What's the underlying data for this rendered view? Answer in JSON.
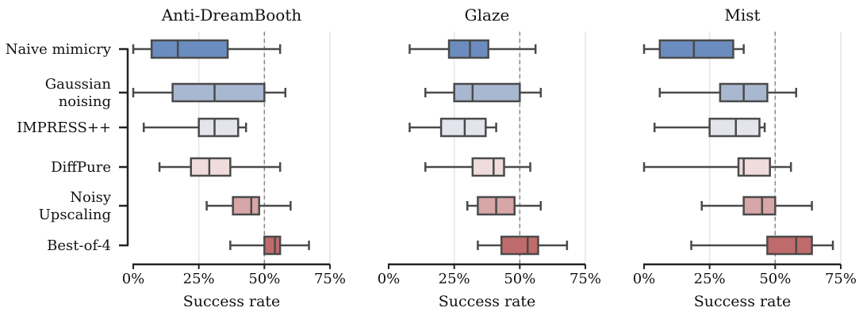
{
  "chart_data": {
    "type": "box",
    "xlabel": "Success rate",
    "xlim": [
      0,
      75
    ],
    "xticks": [
      0,
      25,
      50,
      75
    ],
    "tick_suffix": "%",
    "reference_line": 50,
    "grid": "vertical",
    "categories": [
      {
        "label": [
          "Naive mimicry"
        ],
        "color": "#6b8cbe"
      },
      {
        "label": [
          "Gaussian",
          "noising"
        ],
        "color": "#a8b8d0"
      },
      {
        "label": [
          "IMPRESS++"
        ],
        "color": "#e3e4ec"
      },
      {
        "label": [
          "DiffPure"
        ],
        "color": "#f0dcdc"
      },
      {
        "label": [
          "Noisy",
          "Upscaling"
        ],
        "color": "#d7a6a6"
      },
      {
        "label": [
          "Best-of-4"
        ],
        "color": "#c06b6b"
      }
    ],
    "panels": [
      {
        "title": "Anti-DreamBooth",
        "boxes": [
          {
            "min": 0,
            "q1": 7,
            "median": 17,
            "q3": 36,
            "max": 56
          },
          {
            "min": 0,
            "q1": 15,
            "median": 31,
            "q3": 50,
            "max": 58
          },
          {
            "min": 4,
            "q1": 25,
            "median": 31,
            "q3": 40,
            "max": 43
          },
          {
            "min": 10,
            "q1": 22,
            "median": 29,
            "q3": 37,
            "max": 56
          },
          {
            "min": 28,
            "q1": 38,
            "median": 45,
            "q3": 48,
            "max": 60
          },
          {
            "min": 37,
            "q1": 50,
            "median": 54,
            "q3": 56,
            "max": 67
          }
        ]
      },
      {
        "title": "Glaze",
        "boxes": [
          {
            "min": 8,
            "q1": 23,
            "median": 31,
            "q3": 38,
            "max": 56
          },
          {
            "min": 14,
            "q1": 25,
            "median": 32,
            "q3": 50,
            "max": 58
          },
          {
            "min": 8,
            "q1": 20,
            "median": 29,
            "q3": 37,
            "max": 41
          },
          {
            "min": 14,
            "q1": 32,
            "median": 40,
            "q3": 44,
            "max": 54
          },
          {
            "min": 30,
            "q1": 34,
            "median": 41,
            "q3": 48,
            "max": 58
          },
          {
            "min": 34,
            "q1": 43,
            "median": 53,
            "q3": 57,
            "max": 68
          }
        ]
      },
      {
        "title": "Mist",
        "boxes": [
          {
            "min": 0,
            "q1": 6,
            "median": 19,
            "q3": 34,
            "max": 38
          },
          {
            "min": 6,
            "q1": 29,
            "median": 38,
            "q3": 47,
            "max": 58
          },
          {
            "min": 4,
            "q1": 25,
            "median": 35,
            "q3": 44,
            "max": 46
          },
          {
            "min": 0,
            "q1": 36,
            "median": 38,
            "q3": 48,
            "max": 56
          },
          {
            "min": 22,
            "q1": 38,
            "median": 45,
            "q3": 50,
            "max": 64
          },
          {
            "min": 18,
            "q1": 47,
            "median": 58,
            "q3": 64,
            "max": 72
          }
        ]
      }
    ]
  }
}
